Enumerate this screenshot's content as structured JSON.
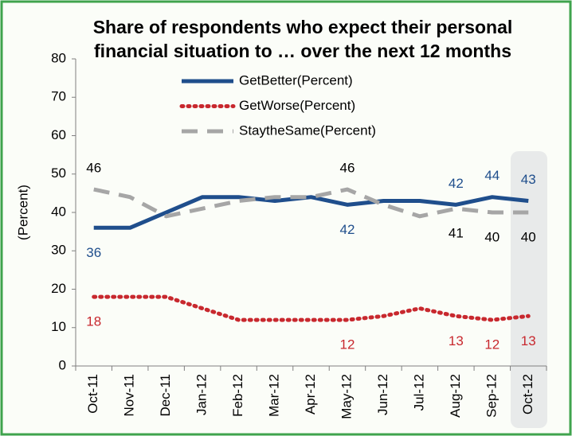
{
  "chart_data": {
    "type": "line",
    "title": [
      "Share of respondents who expect their personal",
      "financial situation to … over the next 12 months"
    ],
    "y_label": "(Percent)",
    "categories": [
      "Oct-11",
      "Nov-11",
      "Dec-11",
      "Jan-12",
      "Feb-12",
      "Mar-12",
      "Apr-12",
      "May-12",
      "Jun-12",
      "Jul-12",
      "Aug-12",
      "Sep-12",
      "Oct-12"
    ],
    "ylim": [
      0,
      80
    ],
    "yticks": [
      0,
      10,
      20,
      30,
      40,
      50,
      60,
      70,
      80
    ],
    "grid": false,
    "series": [
      {
        "name": "GetBetter(Percent)",
        "color": "#1f4e8c",
        "style": "solid",
        "values": [
          36,
          36,
          40,
          44,
          44,
          43,
          44,
          42,
          43,
          43,
          42,
          44,
          43
        ],
        "value_labels": [
          "36",
          null,
          null,
          null,
          null,
          null,
          null,
          "42",
          null,
          null,
          "42",
          "44",
          "43"
        ]
      },
      {
        "name": "GetWorse(Percent)",
        "color": "#c8282e",
        "style": "dotted",
        "values": [
          18,
          18,
          18,
          15,
          12,
          12,
          12,
          12,
          13,
          15,
          13,
          12,
          13
        ],
        "value_labels": [
          "18",
          null,
          null,
          null,
          null,
          null,
          null,
          "12",
          null,
          null,
          "13",
          "12",
          "13"
        ]
      },
      {
        "name": "StaytheSame(Percent)",
        "color": "#a6a6a6",
        "style": "dashed",
        "values": [
          46,
          44,
          39,
          41,
          43,
          44,
          44,
          46,
          42,
          39,
          41,
          40,
          40
        ],
        "value_labels": [
          "46",
          null,
          null,
          null,
          null,
          null,
          null,
          "46",
          null,
          null,
          "41",
          "40",
          "40"
        ]
      }
    ]
  }
}
